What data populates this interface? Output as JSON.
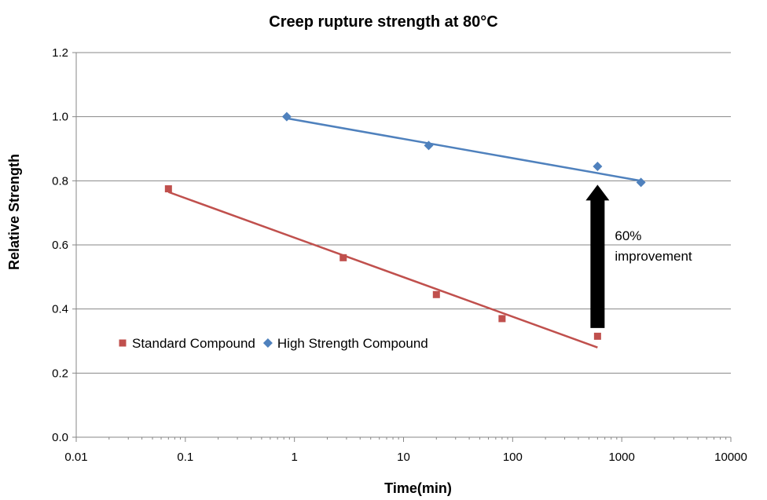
{
  "chart_data": {
    "type": "scatter",
    "title": "Creep rupture strength at 80°C",
    "xlabel": "Time(min)",
    "ylabel": "Relative Strength",
    "x_scale": "log",
    "xlim": [
      0.01,
      10000
    ],
    "ylim": [
      0,
      1.2
    ],
    "x_ticks": [
      "0.01",
      "0.1",
      "1",
      "10",
      "100",
      "1000",
      "10000"
    ],
    "y_ticks": [
      "0.0",
      "0.2",
      "0.4",
      "0.6",
      "0.8",
      "1.0",
      "1.2"
    ],
    "grid": "horizontal",
    "legend_position": "lower-left",
    "series": [
      {
        "name": "Standard Compound",
        "marker": "square",
        "color": "#C0504D",
        "x": [
          0.07,
          2.8,
          20,
          80,
          600
        ],
        "y": [
          0.775,
          0.56,
          0.445,
          0.37,
          0.315
        ],
        "trendline": {
          "x": [
            0.07,
            600
          ],
          "y": [
            0.765,
            0.28
          ]
        }
      },
      {
        "name": "High Strength Compound",
        "marker": "diamond",
        "color": "#4F81BD",
        "x": [
          0.85,
          17,
          600,
          1500
        ],
        "y": [
          1.0,
          0.91,
          0.845,
          0.795
        ],
        "trendline": {
          "x": [
            0.85,
            1500
          ],
          "y": [
            0.995,
            0.8
          ]
        }
      }
    ],
    "annotations": [
      {
        "text_lines": [
          "60%",
          "improvement"
        ],
        "arrow": {
          "x": 600,
          "from_y": 0.37,
          "to_y": 0.8
        }
      }
    ]
  }
}
